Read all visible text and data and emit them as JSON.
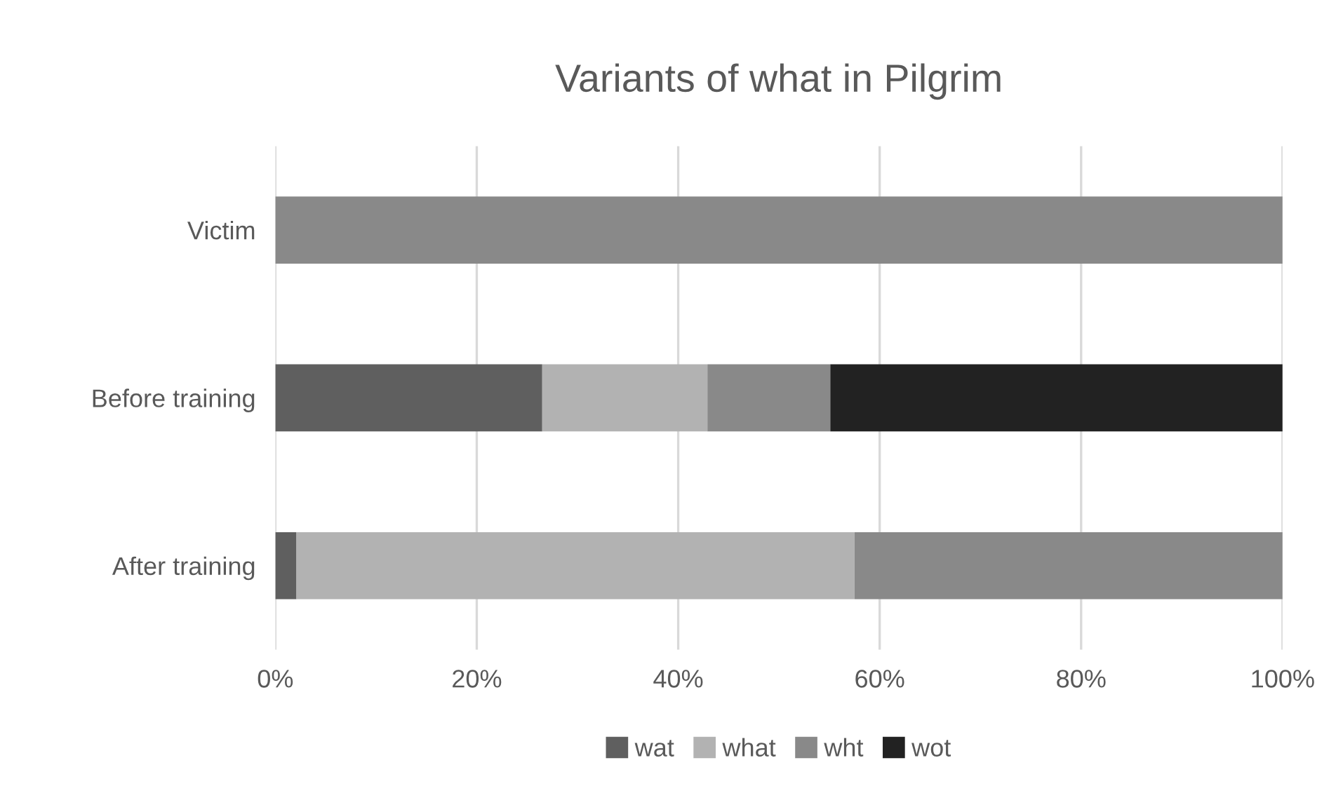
{
  "chart_data": {
    "type": "bar",
    "orientation": "horizontal",
    "stacked": true,
    "title": "Variants of what in Pilgrim",
    "categories": [
      "Victim",
      "Before training",
      "After training"
    ],
    "series": [
      {
        "name": "wat",
        "color": "#5f5f5f",
        "values": [
          0,
          26.5,
          2.1
        ]
      },
      {
        "name": "what",
        "color": "#b2b2b2",
        "values": [
          0,
          16.4,
          55.4
        ]
      },
      {
        "name": "wht",
        "color": "#898989",
        "values": [
          100,
          12.2,
          42.5
        ]
      },
      {
        "name": "wot",
        "color": "#222222",
        "values": [
          0,
          44.9,
          0
        ]
      }
    ],
    "xlim": [
      0,
      100
    ],
    "xticks": [
      {
        "value": 0,
        "label": "0%"
      },
      {
        "value": 20,
        "label": "20%"
      },
      {
        "value": 40,
        "label": "40%"
      },
      {
        "value": 60,
        "label": "60%"
      },
      {
        "value": 80,
        "label": "80%"
      },
      {
        "value": 100,
        "label": "100%"
      }
    ],
    "grid": "x",
    "legend": "bottom"
  }
}
